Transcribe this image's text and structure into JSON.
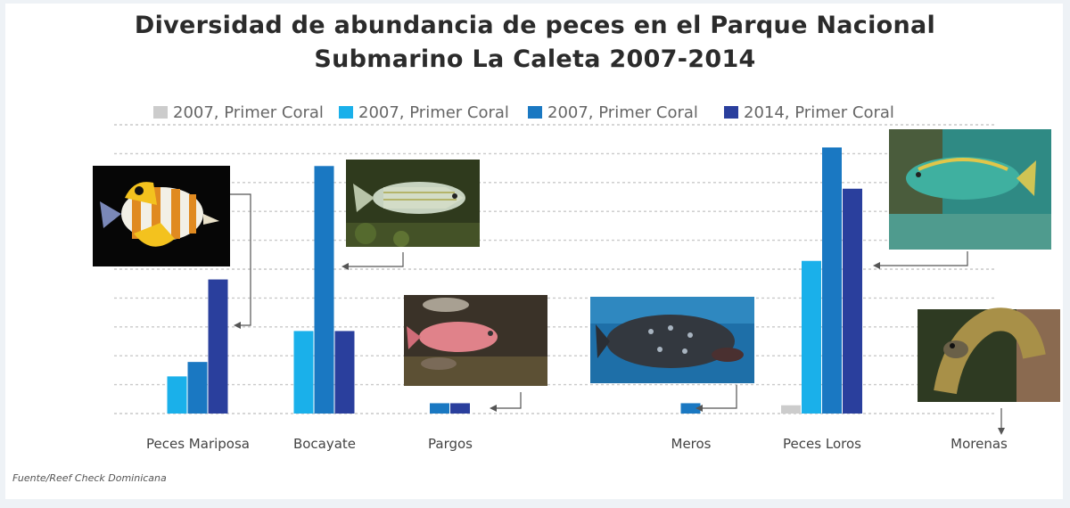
{
  "chart_data": {
    "type": "bar",
    "title_line1": "Diversidad de abundancia de peces en el Parque Nacional",
    "title_line2": "Submarino La Caleta 2007-2014",
    "categories": [
      "Peces Mariposa",
      "Bocayate",
      "Pargos",
      "Meros",
      "Peces Loros",
      "Morenas"
    ],
    "series": [
      {
        "name": "2007, Primer Coral",
        "color": "#cccccc",
        "values": [
          0,
          0,
          0,
          0,
          4,
          0
        ]
      },
      {
        "name": "2007, Primer Coral",
        "color": "#1ab0ea",
        "values": [
          18,
          40,
          0,
          0,
          74,
          0
        ]
      },
      {
        "name": "2007, Primer Coral",
        "color": "#1a78c2",
        "values": [
          25,
          120,
          5,
          5,
          129,
          0
        ]
      },
      {
        "name": "2014, Primer Coral",
        "color": "#2a3f9d",
        "values": [
          65,
          40,
          5,
          0,
          109,
          0
        ]
      }
    ],
    "ylim": [
      0,
      140
    ],
    "grid": true,
    "legend_position": "top"
  },
  "source": "Fuente/Reef Check Dominicana",
  "photos": [
    {
      "name": "butterflyfish-photo",
      "category": "Peces Mariposa"
    },
    {
      "name": "grunt-photo",
      "category": "Bocayate"
    },
    {
      "name": "snapper-photo",
      "category": "Pargos"
    },
    {
      "name": "grouper-photo",
      "category": "Meros"
    },
    {
      "name": "parrotfish-photo",
      "category": "Peces Loros"
    },
    {
      "name": "moray-eel-photo",
      "category": "Morenas"
    }
  ]
}
